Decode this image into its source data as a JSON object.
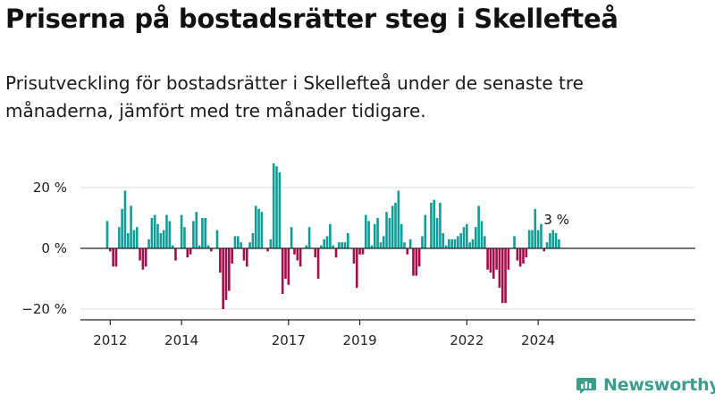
{
  "title": "Priserna på bostadsrätter steg i Skellefteå",
  "subtitle": "Prisutveckling för bostadsrätter i Skellefteå under de senaste tre månaderna, jämfört med tre månader tidigare.",
  "logo": {
    "name": "Newsworthy",
    "icon": "bar-chart-logo-icon"
  },
  "colors": {
    "positive": "#0f9e97",
    "negative": "#a50d4c",
    "grid": "#e0e0e0",
    "axis": "#222222"
  },
  "chart_data": {
    "type": "bar",
    "start": {
      "year": 2011,
      "month": 12
    },
    "ylim": [
      -23,
      31
    ],
    "yticks": [
      {
        "value": 20,
        "label": "20 %"
      },
      {
        "value": 0,
        "label": "0 %"
      },
      {
        "value": -20,
        "label": "−20 %"
      }
    ],
    "xticks": [
      {
        "year": 2012,
        "label": "2012"
      },
      {
        "year": 2014,
        "label": "2014"
      },
      {
        "year": 2017,
        "label": "2017"
      },
      {
        "year": 2019,
        "label": "2019"
      },
      {
        "year": 2022,
        "label": "2022"
      },
      {
        "year": 2024,
        "label": "2024"
      }
    ],
    "annotation": {
      "label": "3 %",
      "value": 3
    },
    "values": [
      9,
      -1,
      -6,
      -6,
      7,
      13,
      19,
      5,
      14,
      6,
      7,
      -4,
      -7,
      -6,
      3,
      10,
      11,
      8,
      5,
      6,
      11,
      9,
      1,
      -4,
      0,
      11,
      7,
      -3,
      -2,
      9,
      12,
      1,
      10,
      10,
      1,
      -1,
      0,
      6,
      -8,
      -20,
      -17,
      -14,
      -5,
      4,
      4,
      2,
      -4,
      -6,
      2,
      5,
      14,
      13,
      12,
      0,
      -1,
      3,
      28,
      27,
      25,
      -15,
      -10,
      -12,
      7,
      -2,
      -4,
      -6,
      0,
      1,
      7,
      0,
      -3,
      -10,
      1,
      3,
      4,
      8,
      1,
      -3,
      2,
      2,
      2,
      5,
      0,
      -5,
      -13,
      -2,
      -2,
      11,
      9,
      1,
      8,
      10,
      2,
      4,
      12,
      10,
      14,
      15,
      19,
      8,
      2,
      -2,
      3,
      -9,
      -9,
      -6,
      4,
      11,
      0,
      15,
      16,
      10,
      15,
      5,
      1,
      3,
      3,
      3,
      4,
      5,
      7,
      8,
      2,
      3,
      7,
      14,
      9,
      4,
      -7,
      -8,
      -10,
      -7,
      -13,
      -18,
      -18,
      -7,
      0,
      4,
      -4,
      -6,
      -5,
      -3,
      6,
      6,
      13,
      6,
      8,
      -1,
      2,
      5,
      6,
      5,
      3
    ]
  }
}
